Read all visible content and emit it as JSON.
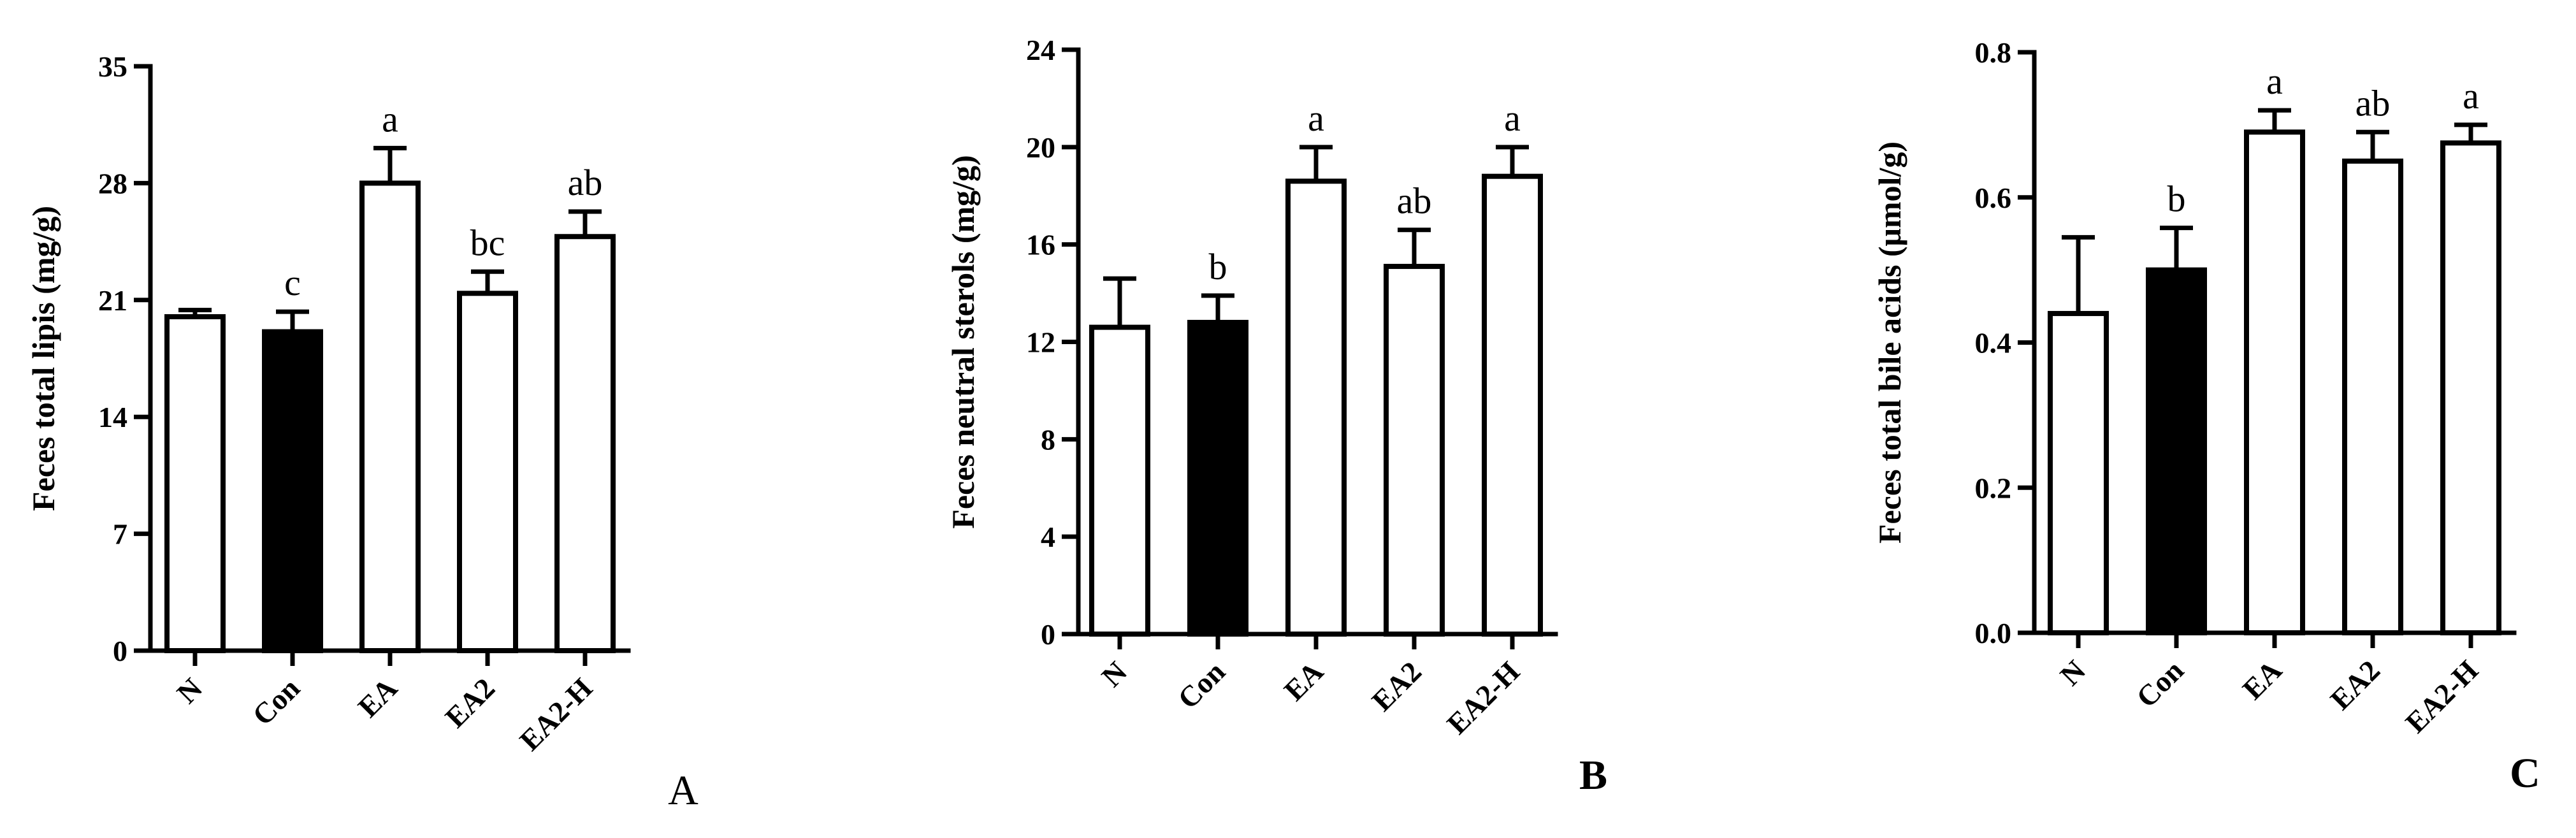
{
  "chart_data": [
    {
      "type": "bar",
      "panel_label": "A",
      "ylabel": "Feces total lipis (mg/g)",
      "ylim": [
        0,
        35
      ],
      "yticks": [
        0,
        7,
        14,
        21,
        28,
        35
      ],
      "categories": [
        "N",
        "Con",
        "EA",
        "EA2",
        "EA2-H"
      ],
      "values": [
        20.0,
        19.1,
        28.0,
        21.4,
        24.8
      ],
      "errors": [
        0.4,
        1.2,
        2.1,
        1.3,
        1.5
      ],
      "significance": [
        "",
        "c",
        "a",
        "bc",
        "ab"
      ],
      "bar_colors": [
        "#ffffff",
        "#000000",
        "#ffffff",
        "#ffffff",
        "#ffffff"
      ],
      "grid": false
    },
    {
      "type": "bar",
      "panel_label": "B",
      "ylabel": "Feces neutral sterols (mg/g)",
      "ylim": [
        0,
        24
      ],
      "yticks": [
        0,
        4,
        8,
        12,
        16,
        20,
        24
      ],
      "categories": [
        "N",
        "Con",
        "EA",
        "EA2",
        "EA2-H"
      ],
      "values": [
        12.6,
        12.8,
        18.6,
        15.1,
        18.8
      ],
      "errors": [
        2.0,
        1.1,
        1.4,
        1.5,
        1.2
      ],
      "significance": [
        "",
        "b",
        "a",
        "ab",
        "a"
      ],
      "bar_colors": [
        "#ffffff",
        "#000000",
        "#ffffff",
        "#ffffff",
        "#ffffff"
      ],
      "grid": false
    },
    {
      "type": "bar",
      "panel_label": "C",
      "ylabel": "Feces total bile acids (μmol/g)",
      "ylim": [
        0,
        0.8
      ],
      "yticks": [
        "0.0",
        "0.2",
        "0.4",
        "0.6",
        "0.8"
      ],
      "categories": [
        "N",
        "Con",
        "EA",
        "EA2",
        "EA2-H"
      ],
      "values": [
        0.44,
        0.5,
        0.69,
        0.65,
        0.675
      ],
      "errors": [
        0.105,
        0.058,
        0.03,
        0.04,
        0.025
      ],
      "significance": [
        "",
        "b",
        "a",
        "ab",
        "a"
      ],
      "bar_colors": [
        "#ffffff",
        "#000000",
        "#ffffff",
        "#ffffff",
        "#ffffff"
      ],
      "grid": false
    }
  ]
}
